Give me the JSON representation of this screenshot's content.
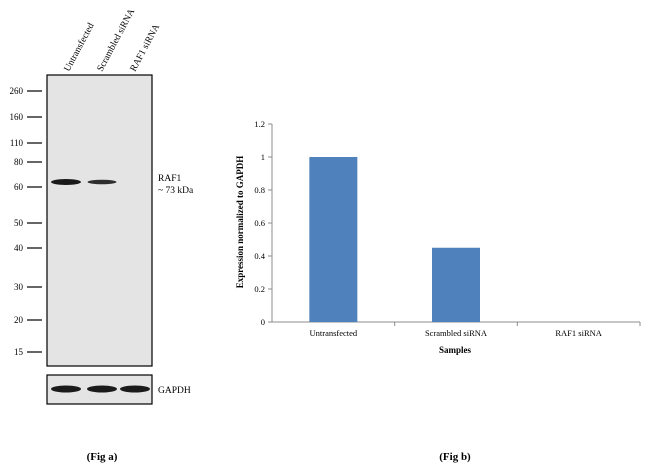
{
  "fig_a": {
    "caption": "(Fig a)",
    "lane_labels": [
      "Untransfected",
      "Scrambled siRNA",
      "RAF1 siRNA"
    ],
    "markers": [
      "260",
      "160",
      "110",
      "80",
      "60",
      "50",
      "40",
      "30",
      "20",
      "15"
    ],
    "band_label_line1": "RAF1",
    "band_label_line2": "~ 73 kDa",
    "loading_label": "GAPDH",
    "band_intensity": [
      1.0,
      0.75,
      0.0
    ],
    "loading_intensity": [
      1.0,
      1.0,
      1.0
    ],
    "membrane_color": "#e4e4e4",
    "band_color": "#1a1a1a"
  },
  "fig_b": {
    "caption": "(Fig b)"
  },
  "chart_data": {
    "type": "bar",
    "categories": [
      "Untransfected",
      "Scrambled siRNA",
      "RAF1 siRNA"
    ],
    "values": [
      1.0,
      0.45,
      0.0
    ],
    "ylabel": "Expression normalized to GAPDH",
    "xlabel": "Samples",
    "ylim": [
      0,
      1.2
    ],
    "yticks": [
      "0",
      "0.2",
      "0.4",
      "0.6",
      "0.8",
      "1",
      "1.2"
    ],
    "grid": false,
    "bar_color": "#4f81bd"
  }
}
